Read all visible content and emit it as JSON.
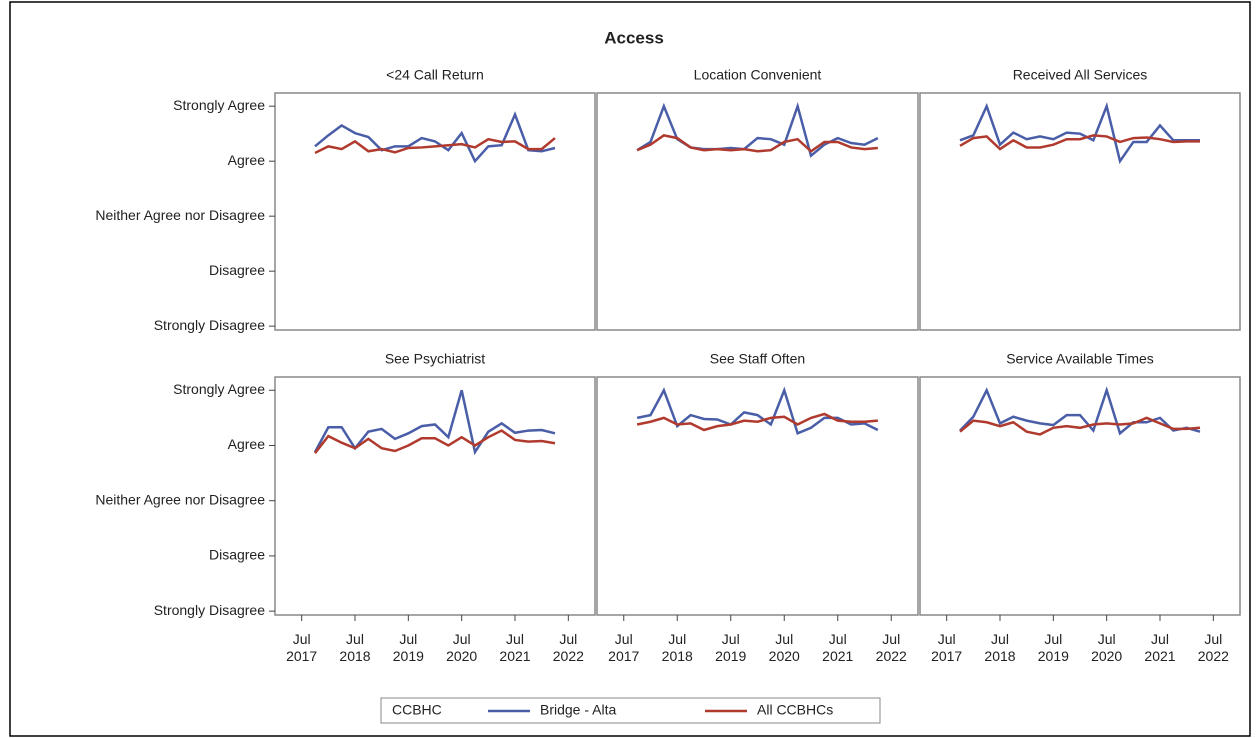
{
  "title": "Access",
  "legend_title": "CCBHC",
  "xlim": [
    "2017-01",
    "2023-01"
  ],
  "xticks": [
    {
      "value": "2017-07",
      "label": "Jul 2017"
    },
    {
      "value": "2018-07",
      "label": "Jul 2018"
    },
    {
      "value": "2019-07",
      "label": "Jul 2019"
    },
    {
      "value": "2020-07",
      "label": "Jul 2020"
    },
    {
      "value": "2021-07",
      "label": "Jul 2021"
    },
    {
      "value": "2022-07",
      "label": "Jul 2022"
    }
  ],
  "ylim": [
    0.93,
    5.24
  ],
  "yticks": [
    {
      "value": 1,
      "label": "Strongly Disagree"
    },
    {
      "value": 2,
      "label": "Disagree"
    },
    {
      "value": 3,
      "label": "Neither Agree nor Disagree"
    },
    {
      "value": 4,
      "label": "Agree"
    },
    {
      "value": 5,
      "label": "Strongly Agree"
    }
  ],
  "chart_data": [
    {
      "type": "line",
      "title": "<24 Call Return",
      "x": [
        "2017-10",
        "2018-01",
        "2018-04",
        "2018-07",
        "2018-10",
        "2019-01",
        "2019-04",
        "2019-07",
        "2019-10",
        "2020-01",
        "2020-04",
        "2020-07",
        "2020-10",
        "2021-01",
        "2021-04",
        "2021-07",
        "2021-10",
        "2022-01",
        "2022-04"
      ],
      "series": [
        {
          "name": "Bridge - Alta",
          "color": "#4a5ea8",
          "values": [
            4.27,
            4.47,
            4.65,
            4.51,
            4.44,
            4.2,
            4.27,
            4.27,
            4.42,
            4.36,
            4.2,
            4.51,
            4.0,
            4.27,
            4.29,
            4.85,
            4.2,
            4.18,
            4.24
          ]
        },
        {
          "name": "All CCBHCs",
          "color": "#b03a2e",
          "values": [
            4.15,
            4.27,
            4.22,
            4.36,
            4.18,
            4.22,
            4.16,
            4.24,
            4.25,
            4.27,
            4.29,
            4.31,
            4.25,
            4.4,
            4.35,
            4.36,
            4.22,
            4.22,
            4.42
          ]
        }
      ]
    },
    {
      "type": "line",
      "title": "Location Convenient",
      "x": [
        "2017-10",
        "2018-01",
        "2018-04",
        "2018-07",
        "2018-10",
        "2019-01",
        "2019-04",
        "2019-07",
        "2019-10",
        "2020-01",
        "2020-04",
        "2020-07",
        "2020-10",
        "2021-01",
        "2021-04",
        "2021-07",
        "2021-10",
        "2022-01",
        "2022-04"
      ],
      "series": [
        {
          "name": "Bridge - Alta",
          "color": "#4a5ea8",
          "values": [
            4.2,
            4.35,
            5.0,
            4.4,
            4.25,
            4.22,
            4.22,
            4.24,
            4.22,
            4.42,
            4.4,
            4.3,
            5.0,
            4.1,
            4.3,
            4.42,
            4.33,
            4.3,
            4.42
          ]
        },
        {
          "name": "All CCBHCs",
          "color": "#b03a2e",
          "values": [
            4.2,
            4.3,
            4.47,
            4.42,
            4.25,
            4.2,
            4.22,
            4.2,
            4.22,
            4.18,
            4.2,
            4.35,
            4.4,
            4.18,
            4.35,
            4.35,
            4.25,
            4.22,
            4.24
          ]
        }
      ]
    },
    {
      "type": "line",
      "title": "Received All Services",
      "x": [
        "2017-10",
        "2018-01",
        "2018-04",
        "2018-07",
        "2018-10",
        "2019-01",
        "2019-04",
        "2019-07",
        "2019-10",
        "2020-01",
        "2020-04",
        "2020-07",
        "2020-10",
        "2021-01",
        "2021-04",
        "2021-07",
        "2021-10",
        "2022-01",
        "2022-04"
      ],
      "series": [
        {
          "name": "Bridge - Alta",
          "color": "#4a5ea8",
          "values": [
            4.38,
            4.47,
            5.0,
            4.3,
            4.52,
            4.4,
            4.45,
            4.4,
            4.52,
            4.5,
            4.38,
            5.0,
            4.0,
            4.35,
            4.35,
            4.65,
            4.38,
            4.38,
            4.38
          ]
        },
        {
          "name": "All CCBHCs",
          "color": "#b03a2e",
          "values": [
            4.28,
            4.42,
            4.45,
            4.22,
            4.38,
            4.25,
            4.25,
            4.3,
            4.4,
            4.4,
            4.47,
            4.45,
            4.35,
            4.42,
            4.43,
            4.4,
            4.35,
            4.36,
            4.36
          ]
        }
      ]
    },
    {
      "type": "line",
      "title": "See Psychiatrist",
      "x": [
        "2017-10",
        "2018-01",
        "2018-04",
        "2018-07",
        "2018-10",
        "2019-01",
        "2019-04",
        "2019-07",
        "2019-10",
        "2020-01",
        "2020-04",
        "2020-07",
        "2020-10",
        "2021-01",
        "2021-04",
        "2021-07",
        "2021-10",
        "2022-01",
        "2022-04"
      ],
      "series": [
        {
          "name": "Bridge - Alta",
          "color": "#4a5ea8",
          "values": [
            3.88,
            4.33,
            4.33,
            3.95,
            4.25,
            4.3,
            4.12,
            4.22,
            4.35,
            4.38,
            4.15,
            5.0,
            3.88,
            4.25,
            4.4,
            4.23,
            4.27,
            4.28,
            4.22
          ]
        },
        {
          "name": "All CCBHCs",
          "color": "#b03a2e",
          "values": [
            3.86,
            4.17,
            4.05,
            3.95,
            4.12,
            3.95,
            3.9,
            4.0,
            4.13,
            4.13,
            4.0,
            4.15,
            4.0,
            4.15,
            4.27,
            4.1,
            4.07,
            4.08,
            4.04
          ]
        }
      ]
    },
    {
      "type": "line",
      "title": "See Staff Often",
      "x": [
        "2017-10",
        "2018-01",
        "2018-04",
        "2018-07",
        "2018-10",
        "2019-01",
        "2019-04",
        "2019-07",
        "2019-10",
        "2020-01",
        "2020-04",
        "2020-07",
        "2020-10",
        "2021-01",
        "2021-04",
        "2021-07",
        "2021-10",
        "2022-01",
        "2022-04"
      ],
      "series": [
        {
          "name": "Bridge - Alta",
          "color": "#4a5ea8",
          "values": [
            4.5,
            4.55,
            5.0,
            4.35,
            4.55,
            4.48,
            4.47,
            4.38,
            4.6,
            4.55,
            4.38,
            5.0,
            4.22,
            4.32,
            4.5,
            4.5,
            4.38,
            4.4,
            4.28
          ]
        },
        {
          "name": "All CCBHCs",
          "color": "#b03a2e",
          "values": [
            4.38,
            4.43,
            4.5,
            4.38,
            4.4,
            4.28,
            4.35,
            4.38,
            4.45,
            4.43,
            4.5,
            4.52,
            4.38,
            4.5,
            4.57,
            4.45,
            4.43,
            4.43,
            4.45
          ]
        }
      ]
    },
    {
      "type": "line",
      "title": "Service Available Times",
      "x": [
        "2017-10",
        "2018-01",
        "2018-04",
        "2018-07",
        "2018-10",
        "2019-01",
        "2019-04",
        "2019-07",
        "2019-10",
        "2020-01",
        "2020-04",
        "2020-07",
        "2020-10",
        "2021-01",
        "2021-04",
        "2021-07",
        "2021-10",
        "2022-01",
        "2022-04"
      ],
      "series": [
        {
          "name": "Bridge - Alta",
          "color": "#4a5ea8",
          "values": [
            4.27,
            4.52,
            5.0,
            4.4,
            4.52,
            4.45,
            4.4,
            4.37,
            4.55,
            4.55,
            4.27,
            5.0,
            4.22,
            4.42,
            4.42,
            4.5,
            4.27,
            4.32,
            4.25
          ]
        },
        {
          "name": "All CCBHCs",
          "color": "#b03a2e",
          "values": [
            4.25,
            4.45,
            4.42,
            4.35,
            4.42,
            4.25,
            4.2,
            4.32,
            4.35,
            4.32,
            4.38,
            4.4,
            4.38,
            4.4,
            4.5,
            4.4,
            4.3,
            4.3,
            4.32
          ]
        }
      ]
    }
  ]
}
